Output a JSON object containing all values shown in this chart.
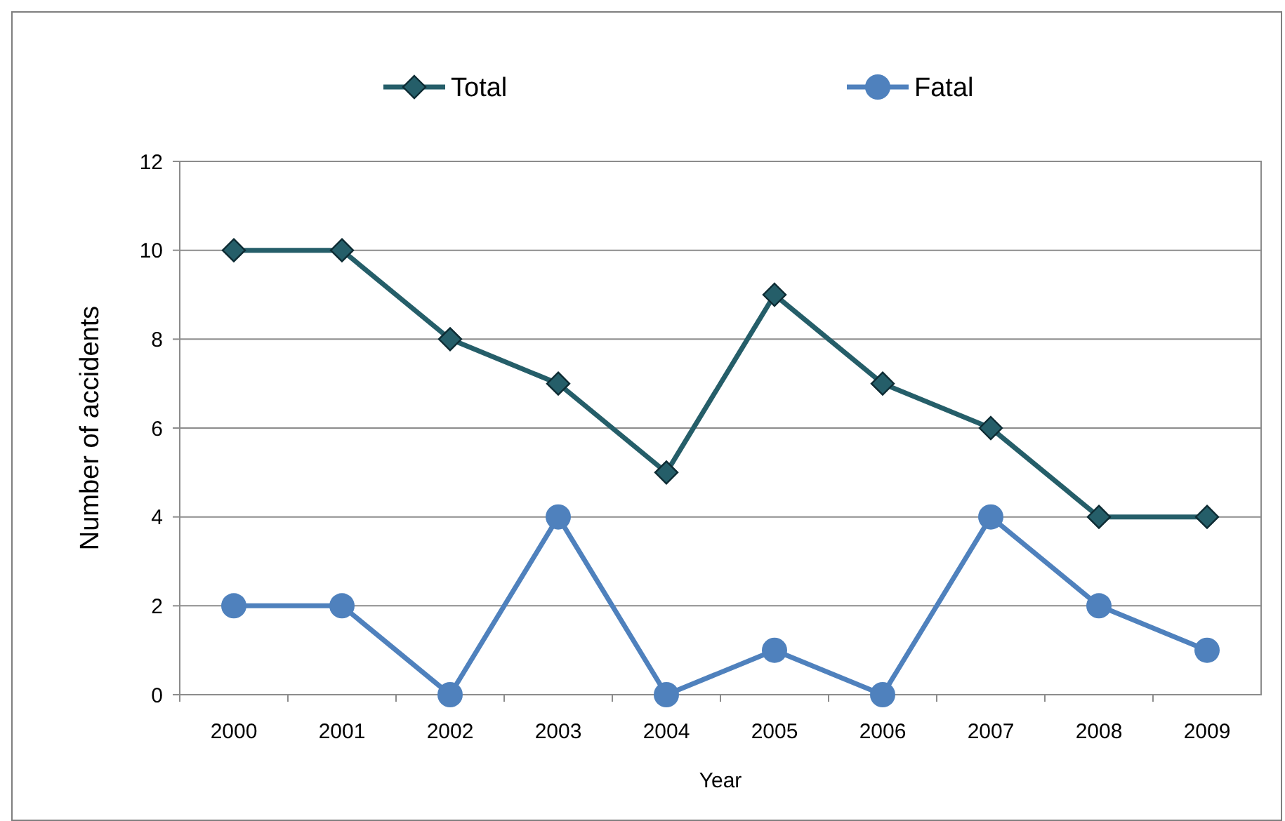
{
  "chart_data": {
    "type": "line",
    "xlabel": "Year",
    "ylabel": "Number of accidents",
    "categories": [
      "2000",
      "2001",
      "2002",
      "2003",
      "2004",
      "2005",
      "2006",
      "2007",
      "2008",
      "2009"
    ],
    "series": [
      {
        "name": "Total",
        "color": "#255e69",
        "marker": "diamond",
        "values": [
          10,
          10,
          8,
          7,
          5,
          9,
          7,
          6,
          4,
          4
        ]
      },
      {
        "name": "Fatal",
        "color": "#4f81bd",
        "marker": "circle",
        "values": [
          2,
          2,
          0,
          4,
          0,
          1,
          0,
          4,
          2,
          1
        ]
      }
    ],
    "ylim": [
      0,
      12
    ],
    "yticks": [
      0,
      2,
      4,
      6,
      8,
      10,
      12
    ],
    "grid": "y",
    "legend": "top"
  }
}
